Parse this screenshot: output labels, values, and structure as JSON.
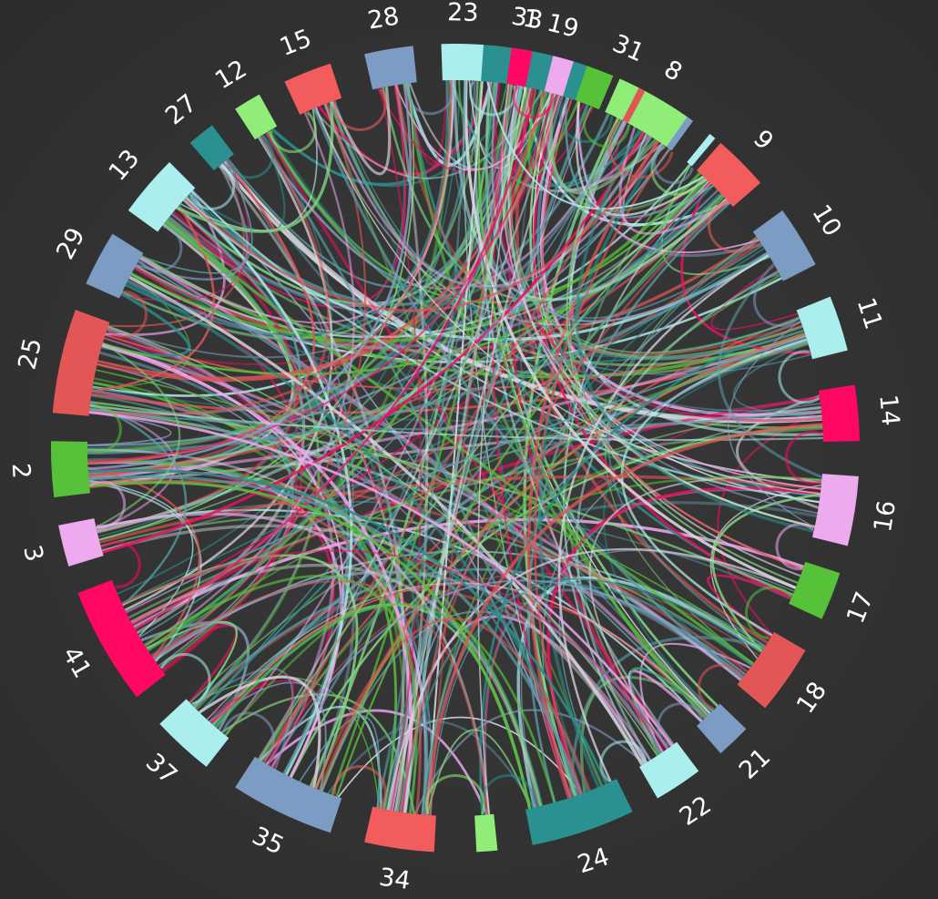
{
  "diagram": {
    "type": "chord",
    "background": "#333333",
    "ribbon_colors": [
      "#e8115f",
      "#b0e8e8",
      "#5a9ea8",
      "#dd5555",
      "#7fd27f",
      "#2a8c88",
      "#86a0c4",
      "#f0a8f0",
      "#57bf3b",
      "#d8d8e0"
    ],
    "nodes": [
      {
        "id": "1",
        "label": "1",
        "color": "#2a9090",
        "order": 0
      },
      {
        "id": "8",
        "label": "8",
        "color": "#90ee78",
        "order": 1
      },
      {
        "id": "9",
        "label": "9",
        "color": "#f25c5c",
        "order": 2
      },
      {
        "id": "10",
        "label": "10",
        "color": "#7c9cc4",
        "order": 3
      },
      {
        "id": "11",
        "label": "11",
        "color": "#aaeeee",
        "order": 4
      },
      {
        "id": "14",
        "label": "14",
        "color": "#ff0863",
        "order": 5
      },
      {
        "id": "16",
        "label": "16",
        "color": "#eeaaee",
        "order": 6
      },
      {
        "id": "17",
        "label": "17",
        "color": "#55c23a",
        "order": 7
      },
      {
        "id": "18",
        "label": "18",
        "color": "#e25656",
        "order": 8
      },
      {
        "id": "21",
        "label": "21",
        "color": "#7c9cc4",
        "order": 9
      },
      {
        "id": "22",
        "label": "22",
        "color": "#aaeeee",
        "order": 10
      },
      {
        "id": "24",
        "label": "24",
        "color": "#2a9090",
        "order": 11
      },
      {
        "id": "n12",
        "label": "",
        "color": "#90ee78",
        "order": 12
      },
      {
        "id": "34",
        "label": "34",
        "color": "#f25c5c",
        "order": 13
      },
      {
        "id": "35",
        "label": "35",
        "color": "#7c9cc4",
        "order": 14
      },
      {
        "id": "37",
        "label": "37",
        "color": "#aaeeee",
        "order": 15
      },
      {
        "id": "41",
        "label": "41",
        "color": "#ff0863",
        "order": 16
      },
      {
        "id": "3",
        "label": "3",
        "color": "#eeaaee",
        "order": 17
      },
      {
        "id": "2",
        "label": "2",
        "color": "#55c23a",
        "order": 18
      },
      {
        "id": "25",
        "label": "25",
        "color": "#e25656",
        "order": 19
      },
      {
        "id": "29",
        "label": "29",
        "color": "#7c9cc4",
        "order": 20
      },
      {
        "id": "13",
        "label": "13",
        "color": "#aaeeee",
        "order": 21
      },
      {
        "id": "27",
        "label": "27",
        "color": "#2a9090",
        "order": 22
      },
      {
        "id": "12",
        "label": "12",
        "color": "#90ee78",
        "order": 23
      },
      {
        "id": "15",
        "label": "15",
        "color": "#f25c5c",
        "order": 24
      },
      {
        "id": "28",
        "label": "28",
        "color": "#7c9cc4",
        "order": 25
      },
      {
        "id": "23",
        "label": "23",
        "color": "#aaeeee",
        "order": 26
      },
      {
        "id": "33",
        "label": "33",
        "color": "#ff0863",
        "order": 27
      },
      {
        "id": "19",
        "label": "19",
        "color": "#eeaaee",
        "order": 28
      },
      {
        "id": "31",
        "label": "31",
        "color": "#55c23a",
        "order": 29
      },
      {
        "id": "n30",
        "label": "",
        "color": "#e25656",
        "order": 30
      },
      {
        "id": "n31",
        "label": "",
        "color": "#7c9cc4",
        "order": 31
      },
      {
        "id": "n32",
        "label": "",
        "color": "#aaeeee",
        "order": 32
      }
    ]
  }
}
